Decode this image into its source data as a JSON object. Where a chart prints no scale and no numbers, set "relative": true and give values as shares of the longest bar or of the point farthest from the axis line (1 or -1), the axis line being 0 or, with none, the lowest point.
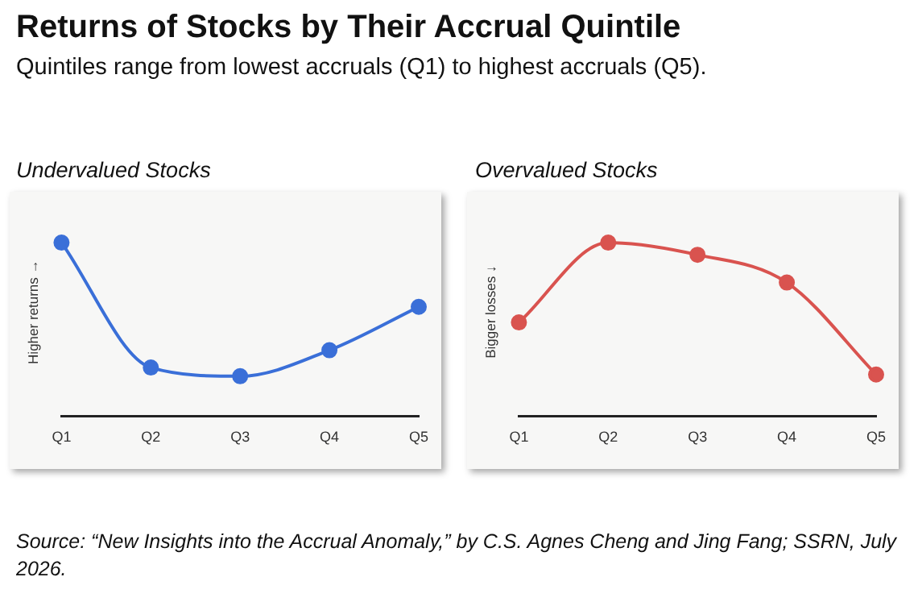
{
  "chart_data": [
    {
      "type": "other",
      "title": "Returns of Stocks by Their Accrual Quintile",
      "subtitle": "Quintiles range from lowest accruals (Q1) to highest accruals (Q5).",
      "annotations": [
        "Source: “New Insights into the Accrual Anomaly,” by C.S. Agnes Cheng and Jing Fang; SSRN, July 2026."
      ]
    },
    {
      "type": "line",
      "title": "Undervalued Stocks",
      "ylabel": "Higher returns →",
      "categories": [
        "Q1",
        "Q2",
        "Q3",
        "Q4",
        "Q5"
      ],
      "relative": true,
      "marker": "circle",
      "grid": false,
      "series": [
        {
          "color": "#3a6fd8",
          "values": [
            1,
            0.28,
            0.23,
            0.38,
            0.63
          ]
        }
      ]
    },
    {
      "type": "line",
      "title": "Overvalued Stocks",
      "ylabel": "Bigger losses ↓",
      "categories": [
        "Q1",
        "Q2",
        "Q3",
        "Q4",
        "Q5"
      ],
      "relative": true,
      "marker": "circle",
      "grid": false,
      "series": [
        {
          "color": "#d9534f",
          "values": [
            0.54,
            1,
            0.93,
            0.77,
            0.24
          ]
        }
      ]
    }
  ]
}
